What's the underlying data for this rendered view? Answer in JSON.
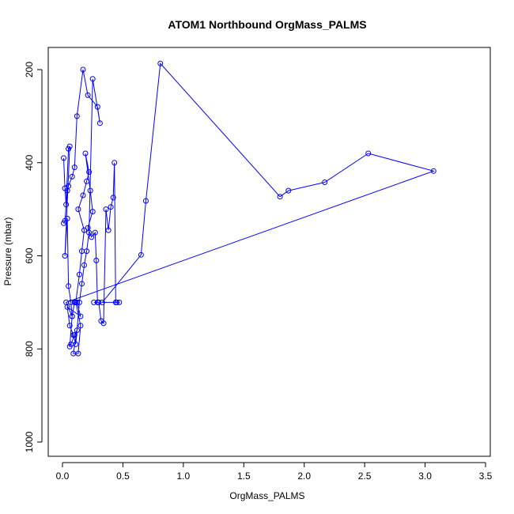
{
  "chart_data": {
    "type": "scatter",
    "title": "ATOM1 Northbound OrgMass_PALMS",
    "xlabel": "OrgMass_PALMS",
    "ylabel": "Pressure (mbar)",
    "xlim": [
      0,
      3.5
    ],
    "ylim": [
      1000,
      160
    ],
    "y_reversed": true,
    "xticks": [
      "0.0",
      "0.5",
      "1.0",
      "1.5",
      "2.0",
      "2.5",
      "3.0",
      "3.5"
    ],
    "yticks": [
      "200",
      "400",
      "600",
      "800",
      "1000"
    ],
    "color": "#0000ff",
    "grid": false,
    "series": [
      {
        "mode": "lines+markers",
        "x": [
          0.01,
          0.02,
          0.03,
          0.05,
          0.06,
          0.02,
          0.04,
          0.05,
          0.07,
          0.08,
          0.06,
          0.07,
          0.1,
          0.12,
          0.09,
          0.13,
          0.15,
          0.11,
          0.14,
          0.16,
          0.18,
          0.13,
          0.17,
          0.2,
          0.22,
          0.19,
          0.23,
          0.25,
          0.21,
          0.24,
          0.27,
          0.28,
          0.29,
          0.26,
          0.3,
          0.32,
          0.34,
          0.36,
          0.38,
          0.4,
          0.42,
          0.43,
          0.44,
          0.45,
          0.47,
          0.33,
          0.65,
          0.69,
          0.81,
          1.8,
          1.87,
          2.17,
          2.53,
          3.07,
          0.03,
          0.08,
          0.1,
          0.12,
          0.15,
          0.04,
          0.06,
          0.09,
          0.11,
          0.14,
          0.16,
          0.18,
          0.2,
          0.22,
          0.25,
          0.31,
          0.29,
          0.21,
          0.17,
          0.12,
          0.1,
          0.08,
          0.05,
          0.04,
          0.02,
          0.01
        ],
        "y": [
          390,
          455,
          490,
          370,
          365,
          600,
          520,
          665,
          700,
          730,
          795,
          790,
          770,
          760,
          810,
          810,
          750,
          700,
          640,
          590,
          545,
          500,
          470,
          440,
          420,
          380,
          460,
          505,
          540,
          560,
          550,
          610,
          700,
          700,
          700,
          740,
          745,
          500,
          545,
          495,
          475,
          400,
          700,
          700,
          700,
          700,
          598,
          482,
          187,
          473,
          460,
          442,
          380,
          418,
          700,
          730,
          700,
          700,
          730,
          710,
          750,
          770,
          790,
          700,
          660,
          620,
          590,
          550,
          220,
          315,
          280,
          255,
          200,
          300,
          410,
          430,
          450,
          460,
          525,
          530
        ]
      }
    ]
  }
}
